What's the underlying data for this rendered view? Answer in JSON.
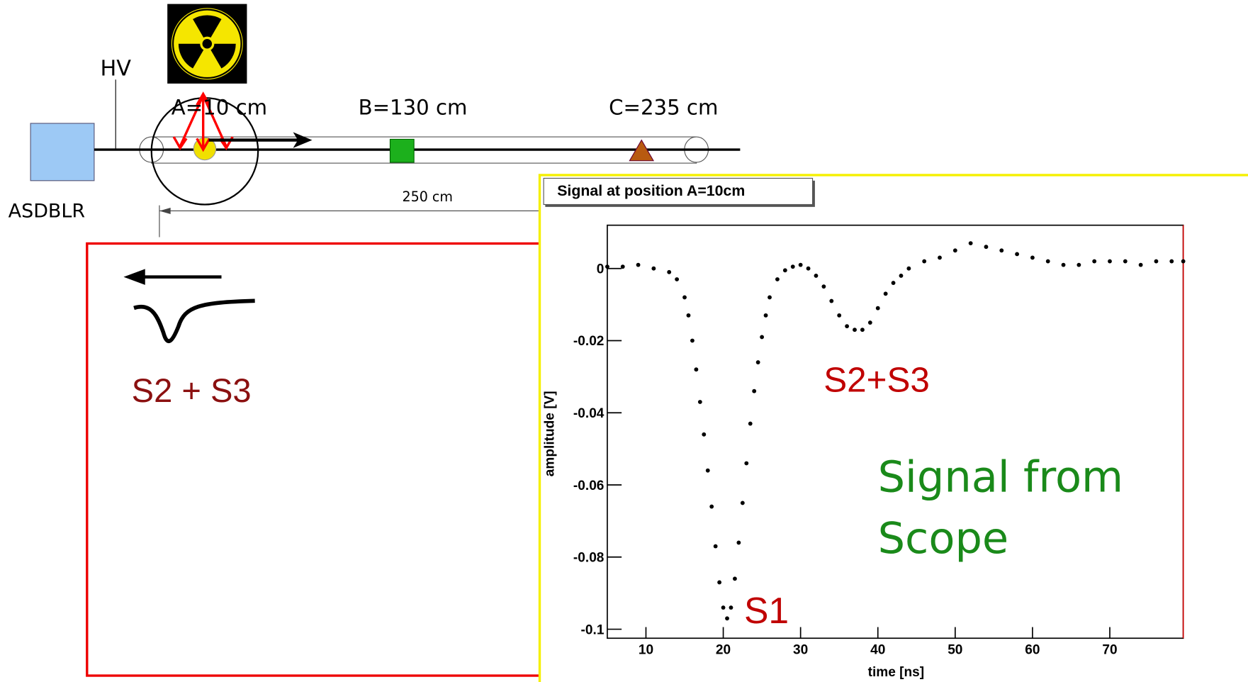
{
  "diagram": {
    "hv": "HV",
    "pos_a": "A=10 cm",
    "pos_b": "B=130 cm",
    "pos_c": "C=235 cm",
    "length": "250 cm",
    "readout": "ASDBLR",
    "reflection": "S2 + S3"
  },
  "chart_data": {
    "type": "scatter",
    "title": "Signal at position A=10cm",
    "xlabel": "time [ns]",
    "ylabel": "amplitude [V]",
    "xlim": [
      5,
      79.5
    ],
    "ylim": [
      -0.1025,
      0.012
    ],
    "xticks": [
      10,
      20,
      30,
      40,
      50,
      60,
      70
    ],
    "yticks": [
      0,
      -0.02,
      -0.04,
      -0.06,
      -0.08,
      -0.1
    ],
    "annotations": [
      "S1",
      "S2+S3",
      "Signal from",
      "Scope"
    ],
    "series": [
      {
        "color": "#000000",
        "x": [
          5,
          7,
          9,
          11,
          13,
          14,
          15,
          15.5,
          16,
          16.5,
          17,
          17.5,
          18,
          18.5,
          19,
          19.5,
          20,
          20.5,
          21,
          21.5,
          22,
          22.5,
          23,
          23.5,
          24,
          24.5,
          25,
          25.5,
          26,
          27,
          28,
          29,
          30,
          31,
          32,
          33,
          34,
          35,
          36,
          37,
          38,
          39,
          40,
          41,
          42,
          43,
          44,
          46,
          48,
          50,
          52,
          54,
          56,
          58,
          60,
          62,
          64,
          66,
          68,
          70,
          72,
          74,
          76,
          78,
          79.5
        ],
        "values": [
          0.0005,
          0.0005,
          0.001,
          0.0,
          -0.001,
          -0.003,
          -0.008,
          -0.013,
          -0.02,
          -0.028,
          -0.037,
          -0.046,
          -0.056,
          -0.066,
          -0.077,
          -0.087,
          -0.094,
          -0.097,
          -0.094,
          -0.086,
          -0.076,
          -0.065,
          -0.054,
          -0.043,
          -0.034,
          -0.026,
          -0.019,
          -0.013,
          -0.008,
          -0.003,
          -0.0005,
          0.0005,
          0.001,
          0.0,
          -0.002,
          -0.005,
          -0.009,
          -0.013,
          -0.016,
          -0.017,
          -0.017,
          -0.015,
          -0.011,
          -0.007,
          -0.004,
          -0.002,
          0.0,
          0.002,
          0.003,
          0.005,
          0.007,
          0.006,
          0.005,
          0.004,
          0.003,
          0.002,
          0.001,
          0.001,
          0.002,
          0.002,
          0.002,
          0.001,
          0.002,
          0.002,
          0.002
        ]
      }
    ]
  }
}
